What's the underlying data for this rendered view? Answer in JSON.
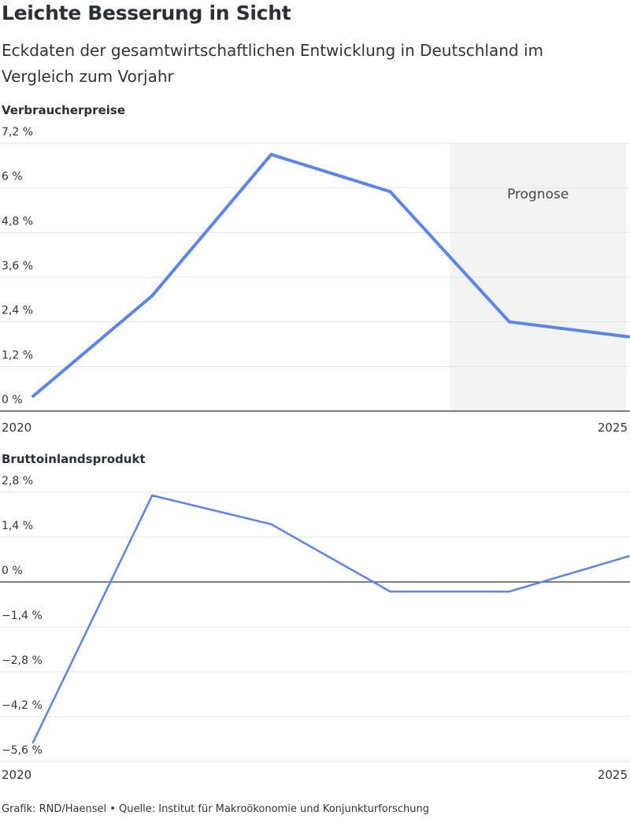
{
  "header": {
    "title": "Leichte Besserung in Sicht",
    "subtitle": "Eckdaten der gesamtwirtschaftlichen Entwicklung in Deutschland im Vergleich zum Vorjahr"
  },
  "footer": {
    "source": "Grafik: RND/Haensel • Quelle: Institut für Makroökonomie und Konjunkturforschung"
  },
  "colors": {
    "line": "#5b84ec",
    "grid": "#e3e3e3",
    "axis": "#333333",
    "forecast_band": "#f3f3f3"
  },
  "chart_data": [
    {
      "type": "line",
      "title": "Verbraucherpreise",
      "x": [
        2020,
        2021,
        2022,
        2023,
        2024,
        2025
      ],
      "x_tick_labels": [
        "2020",
        "2025"
      ],
      "series": [
        {
          "values": [
            0.4,
            3.1,
            6.9,
            5.9,
            2.4,
            2.0
          ]
        }
      ],
      "ylim": [
        0,
        7.2
      ],
      "y_ticks": [
        0,
        1.2,
        2.4,
        3.6,
        4.8,
        6,
        7.2
      ],
      "y_tick_labels": [
        "0 %",
        "1,2 %",
        "2,4 %",
        "3,6 %",
        "4,8 %",
        "6 %",
        "7,2 %"
      ],
      "annotation": {
        "label": "Prognose",
        "x_from": 2023.5,
        "x_to": 2025
      },
      "grid": true
    },
    {
      "type": "line",
      "title": "Bruttoinlandsprodukt",
      "x": [
        2020,
        2021,
        2022,
        2023,
        2024,
        2025
      ],
      "x_tick_labels": [
        "2020",
        "2025"
      ],
      "series": [
        {
          "values": [
            -5.0,
            2.7,
            1.8,
            -0.3,
            -0.3,
            0.8
          ]
        }
      ],
      "ylim": [
        -5.6,
        2.8
      ],
      "y_ticks": [
        -5.6,
        -4.2,
        -2.8,
        -1.4,
        0,
        1.4,
        2.8
      ],
      "y_tick_labels": [
        "−5,6 %",
        "−4,2 %",
        "−2,8 %",
        "−1,4 %",
        "0 %",
        "1,4 %",
        "2,8 %"
      ],
      "grid": true
    }
  ]
}
